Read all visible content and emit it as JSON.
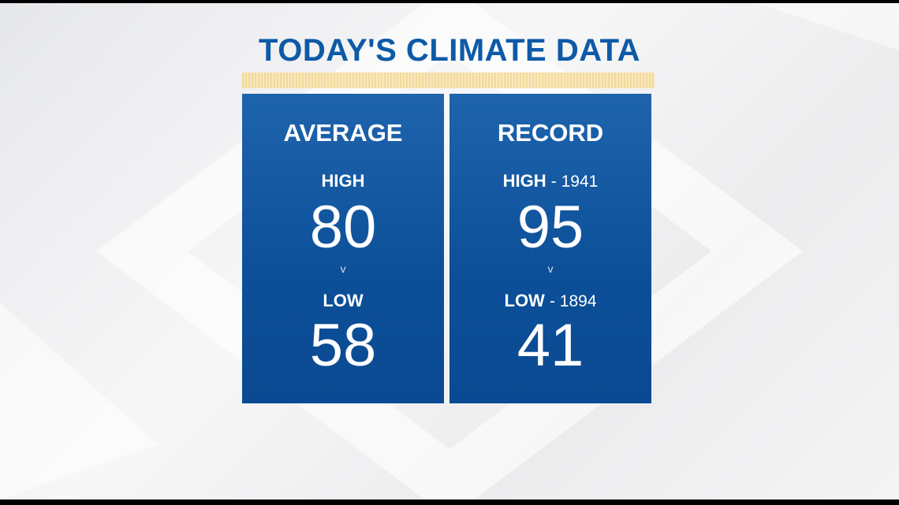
{
  "title": "TODAY'S CLIMATE DATA",
  "colors": {
    "accent": "#0d5aa7",
    "stripe": "#f2d693"
  },
  "average": {
    "heading": "AVERAGE",
    "high_label": "HIGH",
    "high": "80",
    "separator": "v",
    "low_label": "LOW",
    "low": "58"
  },
  "record": {
    "heading": "RECORD",
    "high_label": "HIGH",
    "high_year": "-  1941",
    "high": "95",
    "separator": "v",
    "low_label": "LOW",
    "low_year": "-  1894",
    "low": "41"
  }
}
